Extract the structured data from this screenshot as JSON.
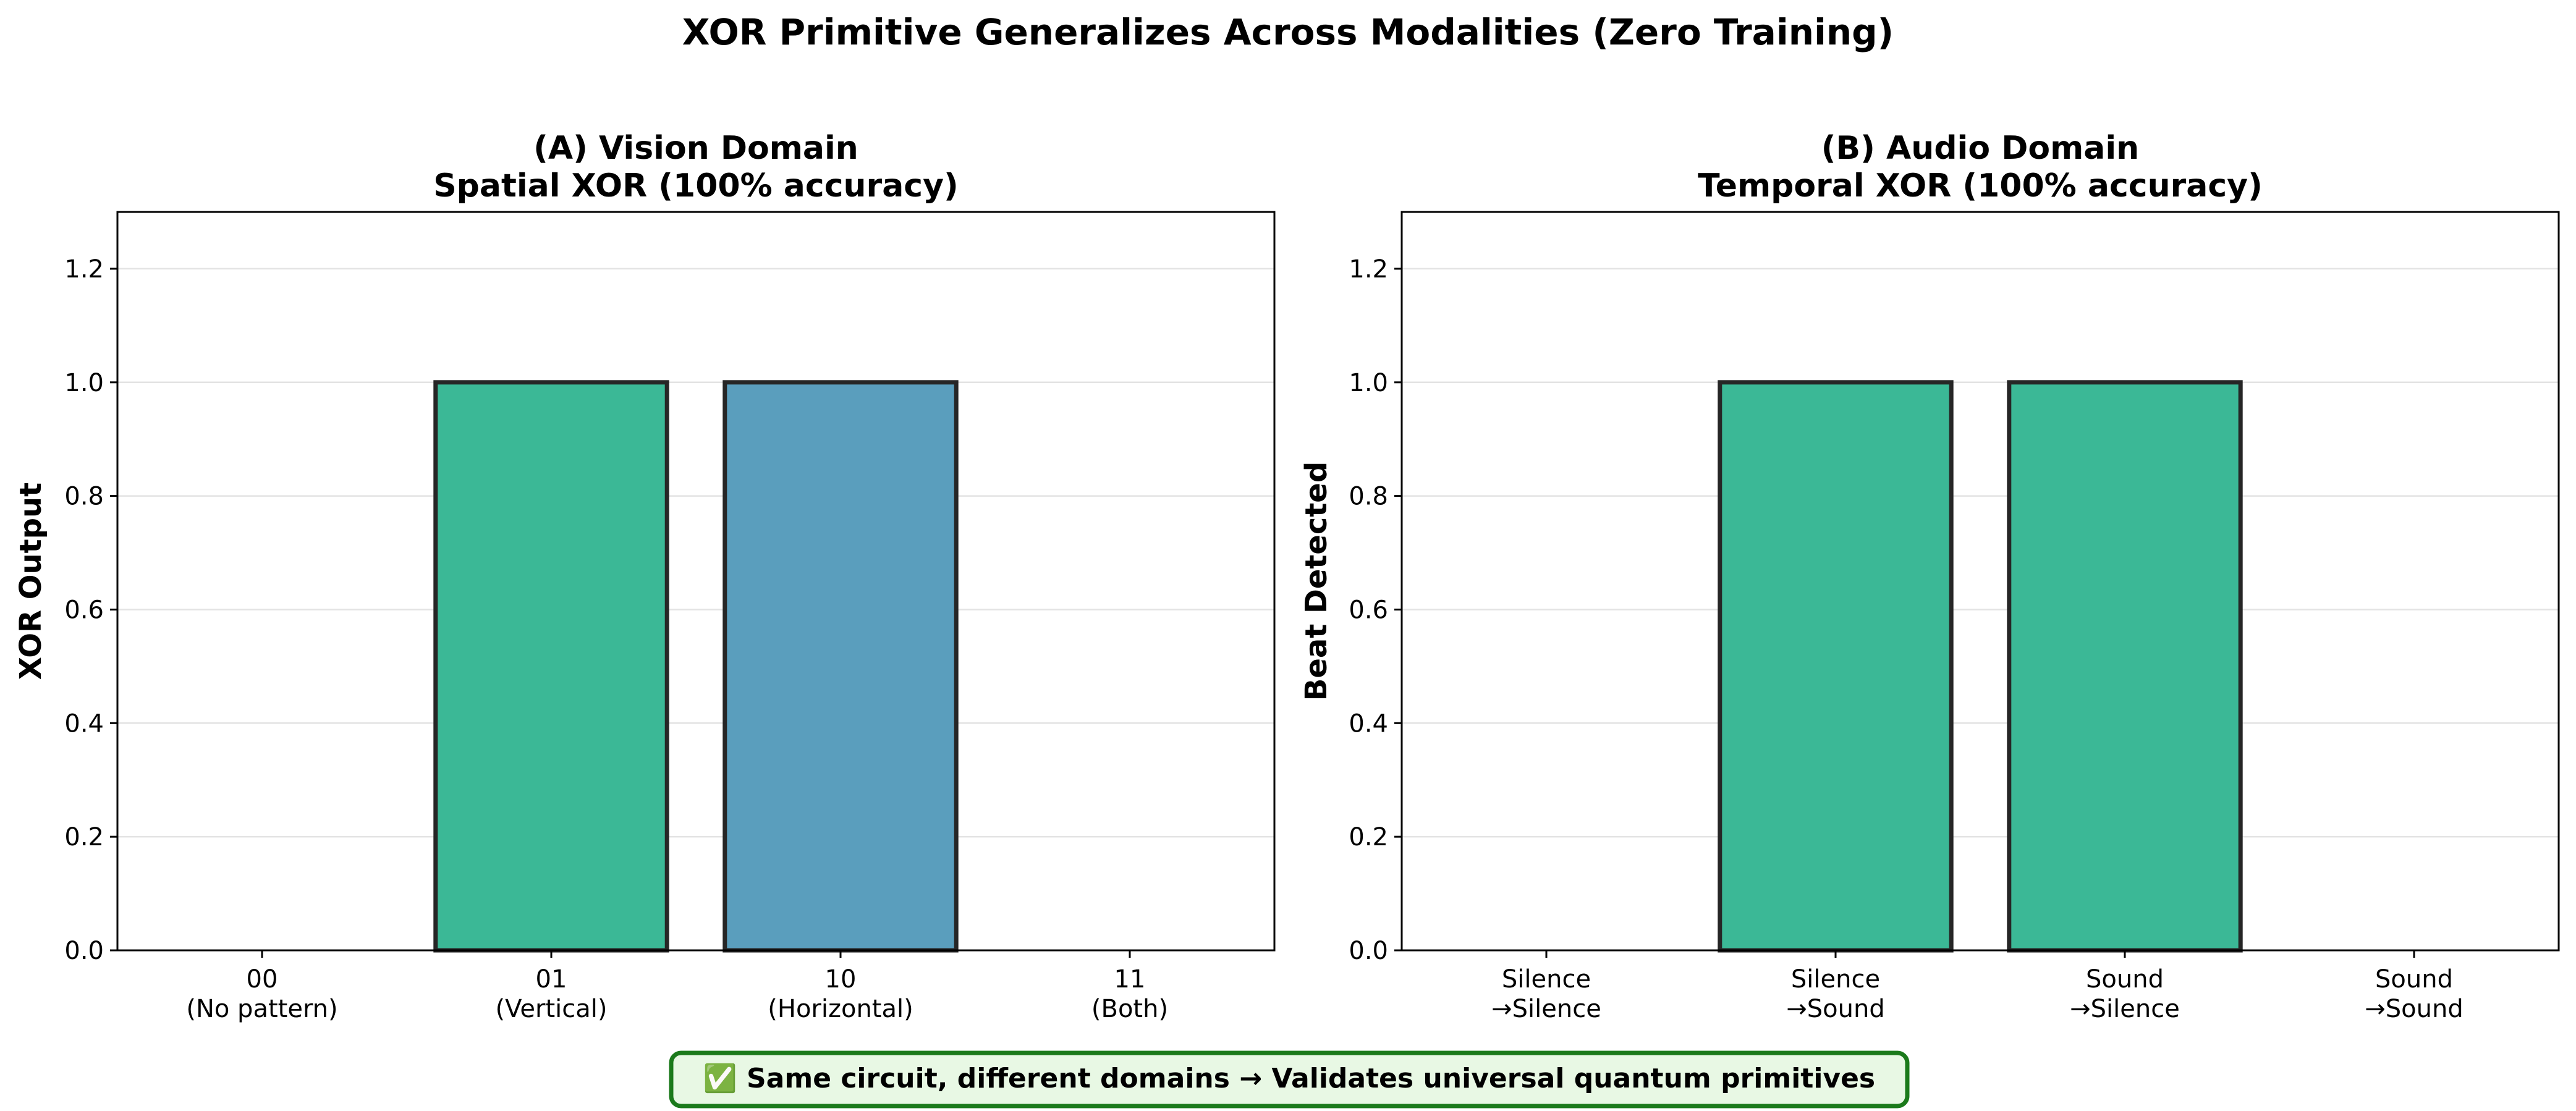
{
  "figure": {
    "title": "XOR Primitive Generalizes Across Modalities (Zero Training)",
    "footer_note": "✅ Same circuit, different domains → Validates universal quantum primitives"
  },
  "chart_data": [
    {
      "type": "bar",
      "title_line1": "(A) Vision Domain",
      "title_line2": "Spatial XOR (100% accuracy)",
      "xlabel": "",
      "ylabel": "XOR Output",
      "categories": [
        [
          "00",
          "(No pattern)"
        ],
        [
          "01",
          "(Vertical)"
        ],
        [
          "10",
          "(Horizontal)"
        ],
        [
          "11",
          "(Both)"
        ]
      ],
      "values": [
        0.0,
        1.0,
        1.0,
        0.0
      ],
      "bar_colors": [
        "#3bb896",
        "#3bb896",
        "#5a9ebd",
        "#3bb896"
      ],
      "ylim": [
        0,
        1.3
      ],
      "yticks": [
        "0.0",
        "0.2",
        "0.4",
        "0.6",
        "0.8",
        "1.0",
        "1.2"
      ],
      "ytick_values": [
        0,
        0.2,
        0.4,
        0.6,
        0.8,
        1.0,
        1.2
      ],
      "grid": "horizontal"
    },
    {
      "type": "bar",
      "title_line1": "(B) Audio Domain",
      "title_line2": "Temporal XOR (100% accuracy)",
      "xlabel": "",
      "ylabel": "Beat Detected",
      "categories": [
        [
          "Silence",
          "→Silence"
        ],
        [
          "Silence",
          "→Sound"
        ],
        [
          "Sound",
          "→Silence"
        ],
        [
          "Sound",
          "→Sound"
        ]
      ],
      "values": [
        0.0,
        1.0,
        1.0,
        0.0
      ],
      "bar_colors": [
        "#3bb896",
        "#3bb896",
        "#3bb896",
        "#3bb896"
      ],
      "ylim": [
        0,
        1.3
      ],
      "yticks": [
        "0.0",
        "0.2",
        "0.4",
        "0.6",
        "0.8",
        "1.0",
        "1.2"
      ],
      "ytick_values": [
        0,
        0.2,
        0.4,
        0.6,
        0.8,
        1.0,
        1.2
      ],
      "grid": "horizontal"
    }
  ]
}
